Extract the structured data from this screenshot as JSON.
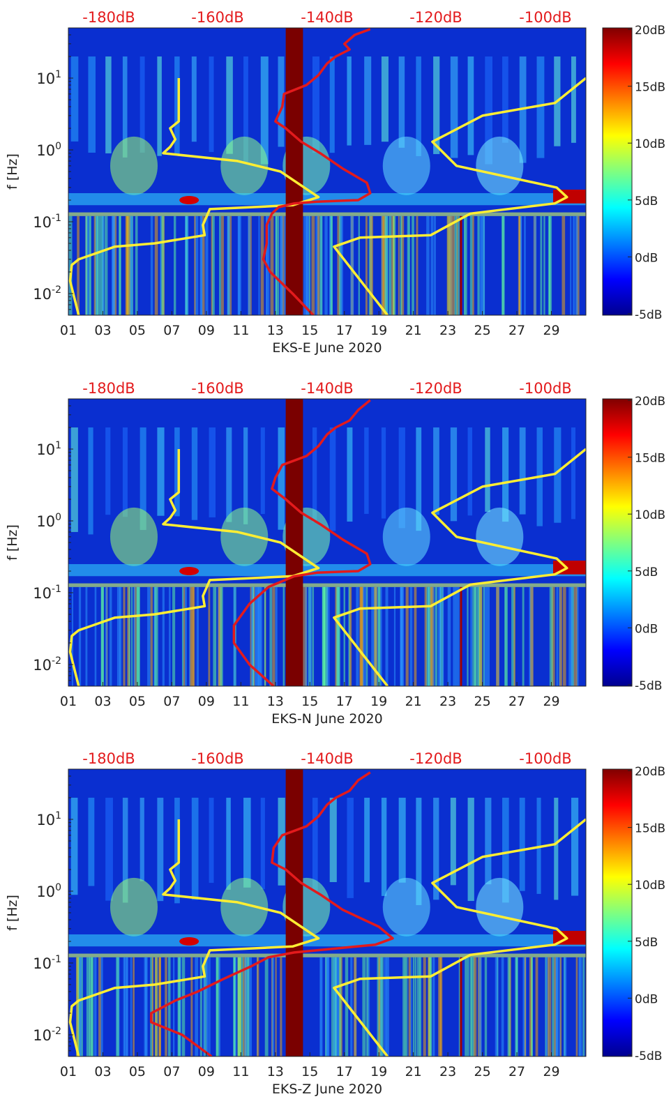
{
  "chart_data": [
    {
      "type": "heatmap",
      "title": "",
      "xlabel": "EKS-E June 2020",
      "ylabel": "f [Hz]",
      "x_ticks": [
        "01",
        "03",
        "05",
        "07",
        "09",
        "11",
        "13",
        "15",
        "17",
        "19",
        "21",
        "23",
        "25",
        "27",
        "29"
      ],
      "xlim": [
        1,
        31
      ],
      "y_scale": "log",
      "ylim": [
        0.005,
        50
      ],
      "y_ticks": [
        {
          "label_base": "10",
          "label_exp": "-2"
        },
        {
          "label_base": "10",
          "label_exp": "-1"
        },
        {
          "label_base": "10",
          "label_exp": "0"
        },
        {
          "label_base": "10",
          "label_exp": "1"
        }
      ],
      "top_axis_ticks": [
        "-180dB",
        "-160dB",
        "-140dB",
        "-120dB",
        "-100dB"
      ],
      "top_axis_color": "#e31a1c",
      "colorbar": {
        "ticks": [
          "20dB",
          "15dB",
          "10dB",
          "5dB",
          "0dB",
          "-5dB"
        ],
        "range": [
          -5,
          20
        ],
        "colormap": "jet"
      },
      "series": [
        {
          "color": "#ffee33",
          "x": [
            7.4,
            7.4,
            6.9,
            7.2,
            6.9,
            6.5,
            10.8,
            13.3,
            15.5,
            14.0,
            9.2,
            8.8,
            8.9,
            6.0,
            3.7,
            1.6,
            1.2,
            1.1,
            1.6
          ],
          "y": [
            10,
            2.5,
            2.0,
            1.4,
            1.1,
            0.9,
            0.7,
            0.5,
            0.22,
            0.17,
            0.15,
            0.09,
            0.065,
            0.05,
            0.045,
            0.03,
            0.025,
            0.015,
            0.005
          ]
        },
        {
          "color": "#ffee33",
          "x": [
            19.5,
            16.4,
            17.9,
            22.0,
            24.3,
            29.2,
            29.9,
            29.3,
            23.5,
            22.1,
            25.0,
            29.2,
            31.0
          ],
          "y": [
            0.005,
            0.045,
            0.06,
            0.065,
            0.13,
            0.18,
            0.22,
            0.3,
            0.6,
            1.3,
            3.0,
            4.5,
            10
          ]
        },
        {
          "color": "#e31a1c",
          "x": [
            15.2,
            14.0,
            12.7,
            12.3,
            12.5,
            12.5,
            12.8,
            13.2,
            14.1,
            15.4,
            17.8,
            18.5,
            18.3,
            16.9,
            15.6,
            14.5,
            13.6,
            13.0,
            13.4,
            13.5,
            14.8,
            15.5,
            16.0,
            16.5,
            17.3,
            17.0,
            17.6,
            18.5
          ],
          "y": [
            0.005,
            0.01,
            0.02,
            0.03,
            0.05,
            0.09,
            0.13,
            0.16,
            0.18,
            0.19,
            0.2,
            0.25,
            0.35,
            0.55,
            0.9,
            1.3,
            2.0,
            2.5,
            4.0,
            6.0,
            8.0,
            11.0,
            16.0,
            20.0,
            25.0,
            30.0,
            40.0,
            48.0
          ]
        }
      ],
      "highlight_band": {
        "x_range": [
          13.6,
          14.6
        ],
        "color": "#7a0000"
      }
    },
    {
      "type": "heatmap",
      "title": "",
      "xlabel": "EKS-N June 2020",
      "ylabel": "f [Hz]",
      "x_ticks": [
        "01",
        "03",
        "05",
        "07",
        "09",
        "11",
        "13",
        "15",
        "17",
        "19",
        "21",
        "23",
        "25",
        "27",
        "29"
      ],
      "xlim": [
        1,
        31
      ],
      "y_scale": "log",
      "ylim": [
        0.005,
        50
      ],
      "y_ticks": [
        {
          "label_base": "10",
          "label_exp": "-2"
        },
        {
          "label_base": "10",
          "label_exp": "-1"
        },
        {
          "label_base": "10",
          "label_exp": "0"
        },
        {
          "label_base": "10",
          "label_exp": "1"
        }
      ],
      "top_axis_ticks": [
        "-180dB",
        "-160dB",
        "-140dB",
        "-120dB",
        "-100dB"
      ],
      "top_axis_color": "#e31a1c",
      "colorbar": {
        "ticks": [
          "20dB",
          "15dB",
          "10dB",
          "5dB",
          "0dB",
          "-5dB"
        ],
        "range": [
          -5,
          20
        ],
        "colormap": "jet"
      },
      "series": [
        {
          "color": "#ffee33",
          "x": [
            7.4,
            7.4,
            6.9,
            7.2,
            6.9,
            6.5,
            10.8,
            13.3,
            15.5,
            14.0,
            9.2,
            8.8,
            8.9,
            6.0,
            3.7,
            1.6,
            1.2,
            1.1,
            1.6
          ],
          "y": [
            10,
            2.5,
            2.0,
            1.4,
            1.1,
            0.9,
            0.7,
            0.5,
            0.22,
            0.17,
            0.15,
            0.09,
            0.065,
            0.05,
            0.045,
            0.03,
            0.025,
            0.015,
            0.005
          ]
        },
        {
          "color": "#ffee33",
          "x": [
            19.5,
            16.4,
            17.9,
            22.0,
            24.3,
            29.2,
            29.9,
            29.3,
            23.5,
            22.1,
            25.0,
            29.2,
            31.0
          ],
          "y": [
            0.005,
            0.045,
            0.06,
            0.065,
            0.13,
            0.18,
            0.22,
            0.3,
            0.6,
            1.3,
            3.0,
            4.5,
            10
          ]
        },
        {
          "color": "#e31a1c",
          "x": [
            12.9,
            11.5,
            10.6,
            10.6,
            11.5,
            12.6,
            14.1,
            15.4,
            17.8,
            18.5,
            18.3,
            16.9,
            15.6,
            14.5,
            13.6,
            12.8,
            13.0,
            13.4,
            14.8,
            15.5,
            16.0,
            16.5,
            17.3,
            17.8,
            18.5
          ],
          "y": [
            0.005,
            0.01,
            0.02,
            0.035,
            0.07,
            0.12,
            0.17,
            0.19,
            0.2,
            0.25,
            0.35,
            0.55,
            0.9,
            1.3,
            2.0,
            2.8,
            4.0,
            6.0,
            8.0,
            11.0,
            16.0,
            20.0,
            25.0,
            35.0,
            48.0
          ]
        }
      ],
      "highlight_band": {
        "x_range": [
          13.6,
          14.6
        ],
        "color": "#7a0000"
      }
    },
    {
      "type": "heatmap",
      "title": "",
      "xlabel": "EKS-Z June 2020",
      "ylabel": "f [Hz]",
      "x_ticks": [
        "01",
        "03",
        "05",
        "07",
        "09",
        "11",
        "13",
        "15",
        "17",
        "19",
        "21",
        "23",
        "25",
        "27",
        "29"
      ],
      "xlim": [
        1,
        31
      ],
      "y_scale": "log",
      "ylim": [
        0.005,
        50
      ],
      "y_ticks": [
        {
          "label_base": "10",
          "label_exp": "-2"
        },
        {
          "label_base": "10",
          "label_exp": "-1"
        },
        {
          "label_base": "10",
          "label_exp": "0"
        },
        {
          "label_base": "10",
          "label_exp": "1"
        }
      ],
      "top_axis_ticks": [
        "-180dB",
        "-160dB",
        "-140dB",
        "-120dB",
        "-100dB"
      ],
      "top_axis_color": "#e31a1c",
      "colorbar": {
        "ticks": [
          "20dB",
          "15dB",
          "10dB",
          "5dB",
          "0dB",
          "-5dB"
        ],
        "range": [
          -5,
          20
        ],
        "colormap": "jet"
      },
      "series": [
        {
          "color": "#ffee33",
          "x": [
            7.4,
            7.4,
            6.9,
            7.2,
            6.9,
            6.5,
            10.8,
            13.3,
            15.5,
            14.0,
            9.2,
            8.8,
            8.9,
            6.0,
            3.7,
            1.6,
            1.2,
            1.1,
            1.6
          ],
          "y": [
            10,
            2.5,
            2.0,
            1.4,
            1.1,
            0.9,
            0.7,
            0.5,
            0.22,
            0.17,
            0.15,
            0.09,
            0.065,
            0.05,
            0.045,
            0.03,
            0.025,
            0.015,
            0.005
          ]
        },
        {
          "color": "#ffee33",
          "x": [
            19.5,
            16.4,
            17.9,
            22.0,
            24.3,
            29.2,
            29.9,
            29.3,
            23.5,
            22.1,
            25.0,
            29.2,
            31.0
          ],
          "y": [
            0.005,
            0.045,
            0.06,
            0.065,
            0.13,
            0.18,
            0.22,
            0.3,
            0.6,
            1.3,
            3.0,
            4.5,
            10
          ]
        },
        {
          "color": "#e31a1c",
          "x": [
            9.3,
            7.6,
            5.8,
            5.8,
            7.2,
            8.5,
            10.0,
            11.6,
            12.6,
            14.1,
            16.6,
            18.8,
            19.8,
            19.0,
            16.9,
            15.6,
            14.5,
            13.6,
            12.8,
            12.9,
            13.4,
            14.8,
            15.5,
            16.0,
            16.5,
            17.3,
            17.8,
            18.5
          ],
          "y": [
            0.005,
            0.01,
            0.015,
            0.02,
            0.03,
            0.04,
            0.06,
            0.09,
            0.12,
            0.14,
            0.16,
            0.18,
            0.22,
            0.32,
            0.55,
            0.9,
            1.3,
            2.0,
            2.5,
            4.0,
            6.0,
            8.0,
            11.0,
            16.0,
            20.0,
            25.0,
            35.0,
            45.0
          ]
        }
      ],
      "highlight_band": {
        "x_range": [
          13.6,
          14.6
        ],
        "color": "#7a0000"
      }
    }
  ]
}
